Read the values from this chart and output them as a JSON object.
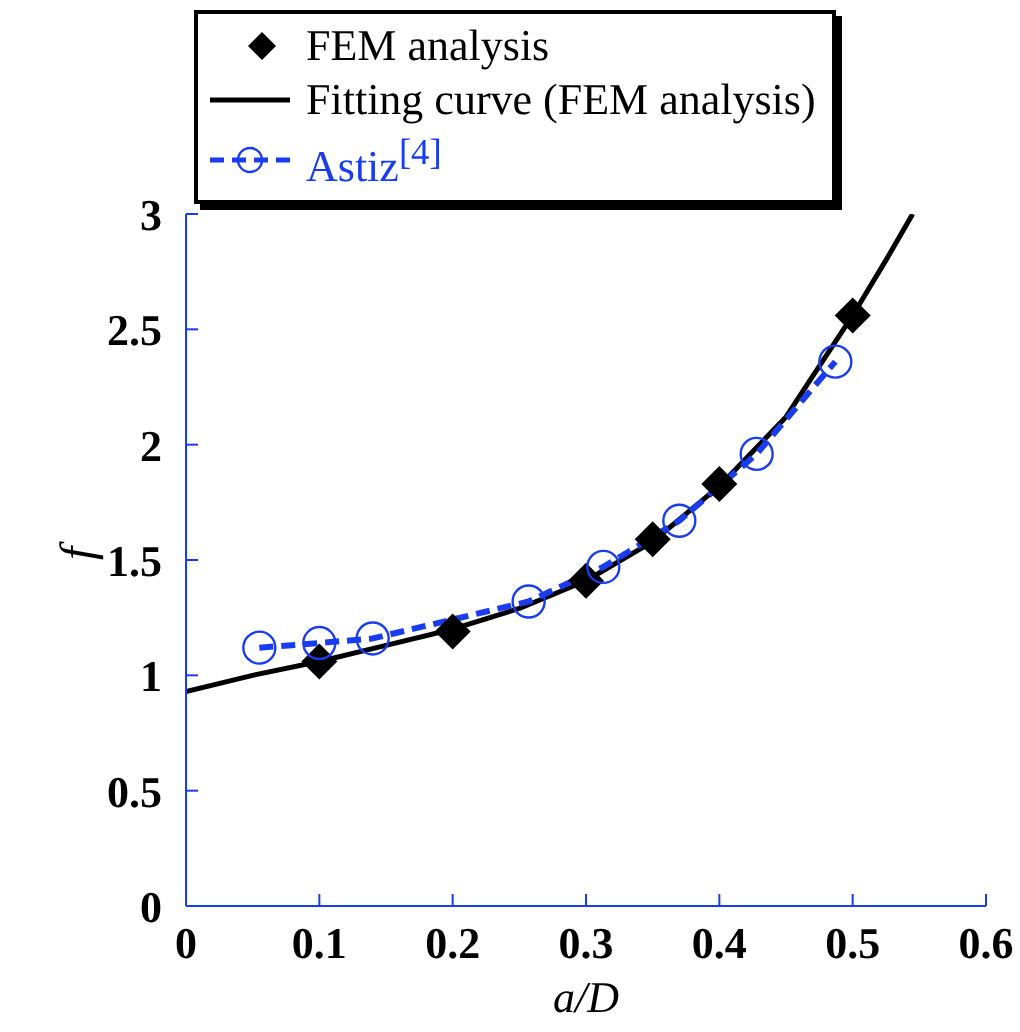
{
  "chart_data": {
    "type": "line",
    "xlabel": "a/D",
    "ylabel": "f",
    "xlim": [
      0,
      0.6
    ],
    "xticks": [
      0,
      0.1,
      0.2,
      0.3,
      0.4,
      0.5,
      0.6
    ],
    "ylim": [
      0,
      3
    ],
    "yticks": [
      0,
      0.5,
      1,
      1.5,
      2,
      2.5,
      3
    ],
    "grid": false,
    "legend": "top left",
    "series": [
      {
        "name": "FEM analysis",
        "type": "scatter",
        "marker": "diamond",
        "color": "#000000",
        "x": [
          0.1,
          0.2,
          0.3,
          0.35,
          0.4,
          0.5
        ],
        "values": [
          1.06,
          1.19,
          1.41,
          1.59,
          1.83,
          2.56
        ]
      },
      {
        "name": "Fitting curve (FEM analysis)",
        "marker": "none",
        "line_style": "solid",
        "color": "#000000",
        "x": [
          0,
          0.05,
          0.1,
          0.15,
          0.2,
          0.25,
          0.3,
          0.35,
          0.4,
          0.45,
          0.5,
          0.525,
          0.545
        ],
        "values": [
          0.93,
          1.0,
          1.06,
          1.13,
          1.2,
          1.29,
          1.41,
          1.58,
          1.82,
          2.12,
          2.56,
          2.8,
          3.0
        ]
      },
      {
        "name": "Astiz$^{[4]}$",
        "marker": "circle",
        "line_style": "dashed",
        "color": "#1a3cf0",
        "x": [
          0.055,
          0.1,
          0.14,
          0.257,
          0.313,
          0.37,
          0.428,
          0.487
        ],
        "values": [
          1.12,
          1.14,
          1.16,
          1.32,
          1.47,
          1.67,
          1.96,
          2.36
        ]
      }
    ]
  }
}
